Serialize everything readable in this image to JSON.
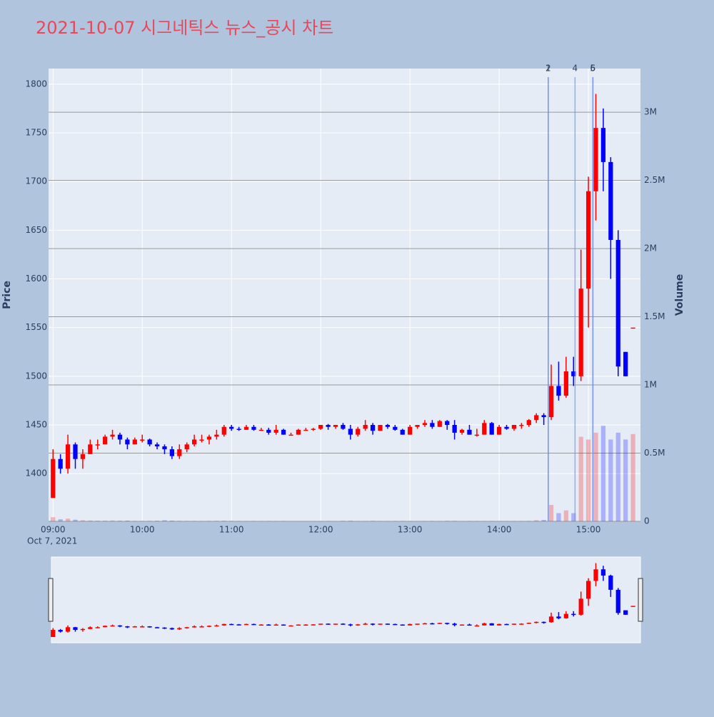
{
  "chart_data": {
    "type": "candlestick",
    "title": "2021-10-07 시그네틱스 뉴스_공시 차트",
    "y_label": "Price",
    "y2_label": "Volume",
    "x_sublabel": "Oct 7, 2021",
    "xlim": [
      "08:57",
      "15:35"
    ],
    "xticks": [
      "09:00",
      "10:00",
      "11:00",
      "12:00",
      "13:00",
      "14:00",
      "15:00"
    ],
    "ylim": [
      1351,
      1816
    ],
    "yticks": [
      1400,
      1450,
      1500,
      1550,
      1600,
      1650,
      1700,
      1750,
      1800
    ],
    "y2lim": [
      0,
      3320000
    ],
    "y2ticks": [
      0,
      {
        "value": 500000,
        "label": "0.5M"
      },
      {
        "value": 1000000,
        "label": "1M"
      },
      {
        "value": 1500000,
        "label": "1.5M"
      },
      {
        "value": 2000000,
        "label": "2M"
      },
      {
        "value": 2500000,
        "label": "2.5M"
      },
      {
        "value": 3000000,
        "label": "3M"
      }
    ],
    "grid": true,
    "up_color": "#ff0000",
    "down_color": "#0000ff",
    "x": [
      "09:00",
      "09:05",
      "09:10",
      "09:15",
      "09:20",
      "09:25",
      "09:30",
      "09:35",
      "09:40",
      "09:45",
      "09:50",
      "09:55",
      "10:00",
      "10:05",
      "10:10",
      "10:15",
      "10:20",
      "10:25",
      "10:30",
      "10:35",
      "10:40",
      "10:45",
      "10:50",
      "10:55",
      "11:00",
      "11:05",
      "11:10",
      "11:15",
      "11:20",
      "11:25",
      "11:30",
      "11:35",
      "11:40",
      "11:45",
      "11:50",
      "11:55",
      "12:00",
      "12:05",
      "12:10",
      "12:15",
      "12:20",
      "12:25",
      "12:30",
      "12:35",
      "12:40",
      "12:45",
      "12:50",
      "12:55",
      "13:00",
      "13:05",
      "13:10",
      "13:15",
      "13:20",
      "13:25",
      "13:30",
      "13:35",
      "13:40",
      "13:45",
      "13:50",
      "13:55",
      "14:00",
      "14:05",
      "14:10",
      "14:15",
      "14:20",
      "14:25",
      "14:30",
      "14:35",
      "14:40",
      "14:45",
      "14:50",
      "14:55",
      "15:00",
      "15:05",
      "15:10",
      "15:15",
      "15:20",
      "15:25",
      "15:30"
    ],
    "open": [
      1375,
      1415,
      1405,
      1430,
      1415,
      1420,
      1430,
      1430,
      1438,
      1440,
      1435,
      1430,
      1435,
      1435,
      1430,
      1428,
      1425,
      1418,
      1425,
      1430,
      1435,
      1435,
      1438,
      1440,
      1448,
      1446,
      1445,
      1448,
      1445,
      1445,
      1442,
      1445,
      1440,
      1440,
      1445,
      1445,
      1446,
      1450,
      1448,
      1450,
      1446,
      1440,
      1446,
      1450,
      1444,
      1450,
      1448,
      1445,
      1440,
      1448,
      1450,
      1452,
      1448,
      1454,
      1450,
      1442,
      1445,
      1440,
      1440,
      1452,
      1440,
      1448,
      1446,
      1450,
      1450,
      1455,
      1460,
      1458,
      1490,
      1480,
      1505,
      1500,
      1590,
      1690,
      1755,
      1720,
      1640,
      1525,
      1550
    ],
    "high": [
      1425,
      1420,
      1440,
      1432,
      1425,
      1435,
      1435,
      1440,
      1445,
      1442,
      1437,
      1437,
      1440,
      1436,
      1432,
      1430,
      1428,
      1430,
      1432,
      1440,
      1440,
      1440,
      1445,
      1450,
      1450,
      1448,
      1450,
      1450,
      1447,
      1447,
      1450,
      1446,
      1442,
      1446,
      1447,
      1447,
      1450,
      1451,
      1450,
      1452,
      1450,
      1448,
      1455,
      1452,
      1450,
      1451,
      1450,
      1446,
      1450,
      1450,
      1455,
      1455,
      1455,
      1455,
      1455,
      1446,
      1450,
      1446,
      1455,
      1453,
      1450,
      1450,
      1450,
      1452,
      1456,
      1462,
      1462,
      1512,
      1515,
      1520,
      1520,
      1630,
      1705,
      1790,
      1775,
      1725,
      1650,
      1525,
      1550
    ],
    "low": [
      1375,
      1400,
      1400,
      1405,
      1405,
      1420,
      1425,
      1430,
      1435,
      1430,
      1425,
      1430,
      1432,
      1428,
      1425,
      1420,
      1415,
      1415,
      1422,
      1428,
      1432,
      1430,
      1435,
      1438,
      1444,
      1444,
      1445,
      1444,
      1444,
      1440,
      1440,
      1440,
      1440,
      1440,
      1444,
      1444,
      1445,
      1445,
      1446,
      1445,
      1435,
      1438,
      1444,
      1440,
      1444,
      1446,
      1444,
      1440,
      1440,
      1446,
      1448,
      1446,
      1448,
      1445,
      1435,
      1440,
      1440,
      1438,
      1440,
      1440,
      1440,
      1445,
      1444,
      1446,
      1448,
      1452,
      1450,
      1455,
      1475,
      1478,
      1490,
      1495,
      1550,
      1660,
      1690,
      1600,
      1500,
      1500,
      1550
    ],
    "close": [
      1415,
      1405,
      1430,
      1415,
      1420,
      1430,
      1430,
      1438,
      1440,
      1435,
      1430,
      1435,
      1435,
      1430,
      1428,
      1425,
      1418,
      1425,
      1430,
      1435,
      1435,
      1438,
      1440,
      1448,
      1446,
      1445,
      1448,
      1445,
      1445,
      1442,
      1445,
      1440,
      1440,
      1445,
      1445,
      1446,
      1450,
      1448,
      1450,
      1446,
      1440,
      1446,
      1450,
      1444,
      1450,
      1448,
      1445,
      1440,
      1448,
      1450,
      1452,
      1448,
      1454,
      1450,
      1442,
      1445,
      1440,
      1440,
      1452,
      1440,
      1448,
      1446,
      1450,
      1450,
      1455,
      1460,
      1458,
      1490,
      1480,
      1505,
      1500,
      1590,
      1690,
      1755,
      1720,
      1640,
      1510,
      1500,
      1550
    ],
    "volume": [
      30000,
      15000,
      20000,
      12000,
      8000,
      6000,
      5000,
      5000,
      6000,
      4000,
      5000,
      3000,
      3000,
      3000,
      4000,
      8000,
      5000,
      4000,
      3000,
      3000,
      2000,
      3000,
      4000,
      5000,
      3000,
      2000,
      2000,
      2000,
      2000,
      2000,
      2000,
      2000,
      1000,
      1000,
      1000,
      1000,
      2000,
      2000,
      1000,
      3000,
      4000,
      2000,
      2000,
      3000,
      2000,
      1000,
      2000,
      2000,
      2000,
      1000,
      2000,
      2000,
      2000,
      3000,
      3000,
      1000,
      2000,
      2000,
      2000,
      2000,
      2000,
      1000,
      2000,
      2000,
      3000,
      8000,
      10000,
      120000,
      60000,
      80000,
      60000,
      620000,
      600000,
      650000,
      700000,
      600000,
      650000,
      600000,
      640000
    ],
    "annotations": [
      {
        "x": "14:33",
        "text": "1"
      },
      {
        "x": "14:33",
        "text": "2"
      },
      {
        "x": "14:51",
        "text": "4"
      },
      {
        "x": "15:03",
        "text": "5"
      },
      {
        "x": "15:03",
        "text": "6"
      }
    ]
  }
}
